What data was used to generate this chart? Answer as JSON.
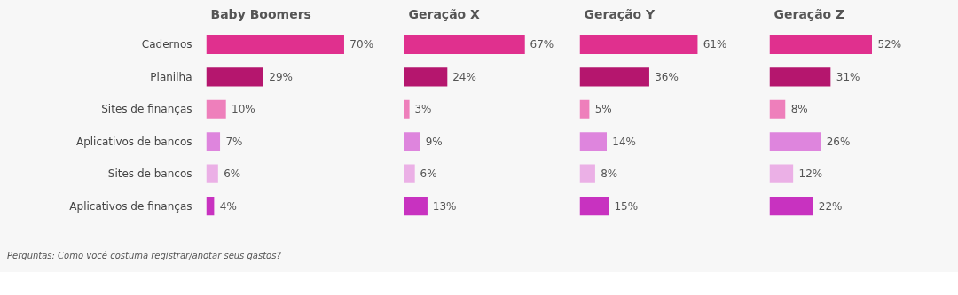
{
  "chart_data": [
    {
      "type": "bar",
      "orientation": "horizontal",
      "title": "Baby Boomers",
      "categories": [
        "Cadernos",
        "Planilha",
        "Sites de finanças",
        "Aplicativos de bancos",
        "Sites de bancos",
        "Aplicativos de finanças"
      ],
      "values": [
        70,
        29,
        10,
        7,
        6,
        4
      ],
      "value_labels": [
        "70%",
        "29%",
        "10%",
        "7%",
        "6%",
        "4%"
      ],
      "colors": [
        "#e0308e",
        "#b5166e",
        "#ee7fbb",
        "#de85dd",
        "#ebb0e6",
        "#c832c0"
      ],
      "annotations": [
        "Perguntas: Como você costuma registrar/anotar seus gastos?"
      ]
    },
    {
      "type": "bar",
      "orientation": "horizontal",
      "title": "Geração X",
      "categories": [
        null,
        null,
        null,
        null,
        null,
        null
      ],
      "values": [
        67,
        24,
        3,
        9,
        6,
        13
      ],
      "value_labels": [
        "67%",
        "24%",
        "3%",
        "9%",
        "6%",
        "13%"
      ],
      "colors": [
        "#e0308e",
        "#b5166e",
        "#ee7fbb",
        "#de85dd",
        "#ebb0e6",
        "#c832c0"
      ]
    },
    {
      "type": "bar",
      "orientation": "horizontal",
      "title": "Geração Y",
      "categories": [
        null,
        null,
        null,
        null,
        null,
        null
      ],
      "values": [
        61,
        36,
        5,
        14,
        8,
        15
      ],
      "value_labels": [
        "61%",
        "36%",
        "5%",
        "14%",
        "8%",
        "15%"
      ],
      "colors": [
        "#e0308e",
        "#b5166e",
        "#ee7fbb",
        "#de85dd",
        "#ebb0e6",
        "#c832c0"
      ]
    },
    {
      "type": "bar",
      "orientation": "horizontal",
      "title": "Geração Z",
      "categories": [
        null,
        null,
        null,
        null,
        null,
        null
      ],
      "values": [
        52,
        31,
        8,
        26,
        12,
        22
      ],
      "value_labels": [
        "52%",
        "31%",
        "8%",
        "26%",
        "12%",
        "22%"
      ],
      "colors": [
        "#e0308e",
        "#b5166e",
        "#ee7fbb",
        "#de85dd",
        "#ebb0e6",
        "#c832c0"
      ]
    }
  ]
}
